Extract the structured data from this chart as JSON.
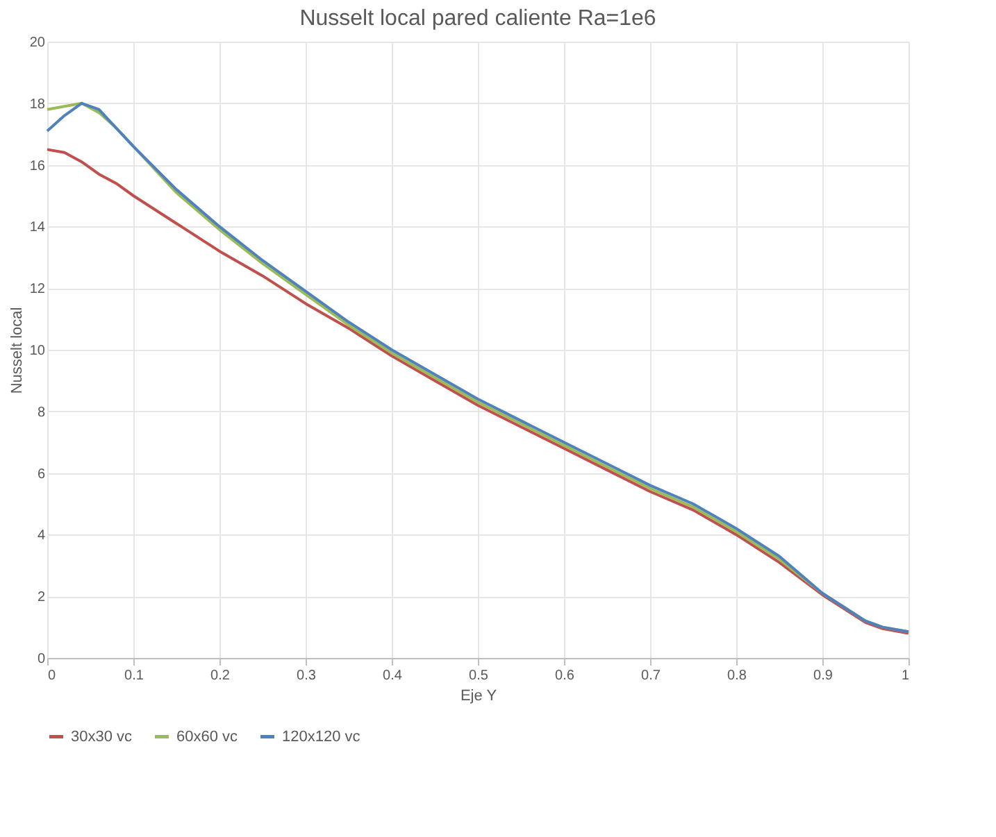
{
  "chart_data": {
    "type": "line",
    "title": "Nusselt local pared caliente Ra=1e6",
    "xlabel": "Eje Y",
    "ylabel": "Nusselt local",
    "x": [
      0,
      0.02,
      0.04,
      0.06,
      0.08,
      0.1,
      0.15,
      0.2,
      0.25,
      0.3,
      0.35,
      0.4,
      0.45,
      0.5,
      0.55,
      0.6,
      0.65,
      0.7,
      0.75,
      0.8,
      0.85,
      0.9,
      0.95,
      0.97,
      1.0
    ],
    "series": [
      {
        "name": "30x30 vc",
        "color": "#c0504d",
        "values": [
          16.5,
          16.4,
          16.1,
          15.7,
          15.4,
          15.0,
          14.1,
          13.2,
          12.4,
          11.5,
          10.7,
          9.8,
          9.0,
          8.2,
          7.5,
          6.8,
          6.1,
          5.4,
          4.8,
          4.0,
          3.1,
          2.05,
          1.15,
          0.95,
          0.8
        ]
      },
      {
        "name": "60x60 vc",
        "color": "#9bbb59",
        "values": [
          17.8,
          17.9,
          18.0,
          17.7,
          17.2,
          16.6,
          15.1,
          13.9,
          12.8,
          11.8,
          10.8,
          9.9,
          9.1,
          8.3,
          7.6,
          6.9,
          6.2,
          5.5,
          4.9,
          4.1,
          3.2,
          2.1,
          1.2,
          1.0,
          0.85
        ]
      },
      {
        "name": "120x120 vc",
        "color": "#4f81bd",
        "values": [
          17.1,
          17.6,
          18.0,
          17.8,
          17.2,
          16.6,
          15.2,
          14.0,
          12.9,
          11.9,
          10.9,
          10.0,
          9.2,
          8.4,
          7.7,
          7.0,
          6.3,
          5.6,
          5.0,
          4.2,
          3.3,
          2.1,
          1.2,
          1.0,
          0.85
        ]
      }
    ],
    "xlim": [
      0,
      1
    ],
    "xticks": [
      0,
      0.1,
      0.2,
      0.3,
      0.4,
      0.5,
      0.6,
      0.7,
      0.8,
      0.9,
      1
    ],
    "ylim": [
      0,
      20
    ],
    "yticks": [
      0,
      2,
      4,
      6,
      8,
      10,
      12,
      14,
      16,
      18,
      20
    ],
    "grid": true,
    "legend": "bottom",
    "marker": "none",
    "line_style": "solid"
  }
}
